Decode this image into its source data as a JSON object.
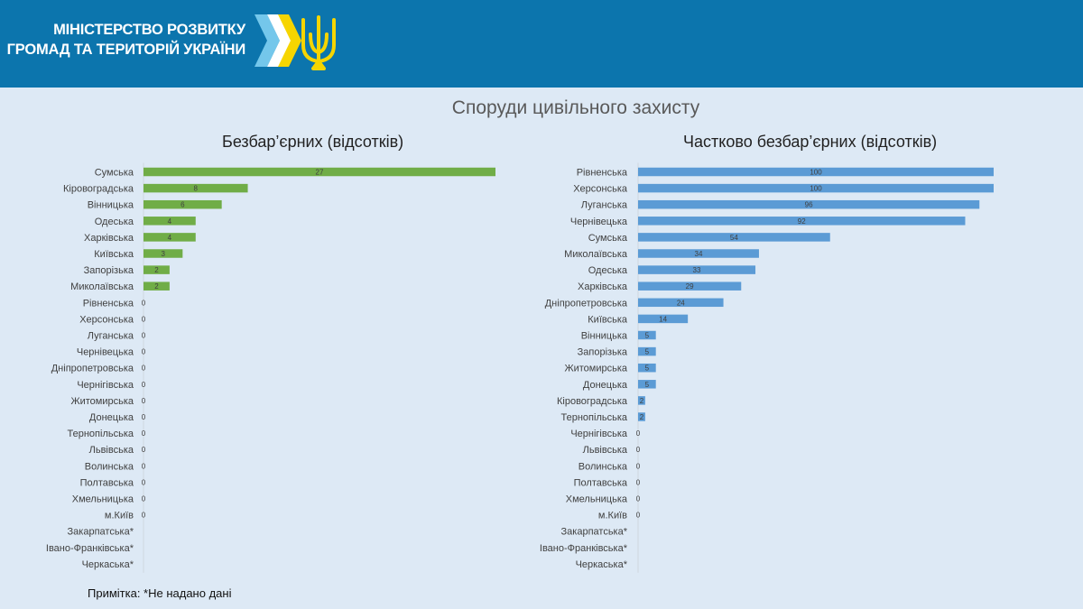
{
  "header": {
    "ministry_line1": "МІНІСТЕРСТВО РОЗВИТКУ",
    "ministry_line2": "ГРОМАД ТА ТЕРИТОРІЙ  УКРАЇНИ"
  },
  "colors": {
    "header_bg": "#0c75ad",
    "page_bg": "#dde9f5",
    "green_series": "#70ad47",
    "blue_series": "#5b9bd5"
  },
  "main_title": "Споруди цивільного захисту",
  "footnote": "Примітка: *Не надано дані",
  "chart_data": [
    {
      "type": "bar",
      "orientation": "horizontal",
      "title": "Безбар’єрних (відсотків)",
      "color": "#70ad47",
      "xlim": [
        0,
        27
      ],
      "categories": [
        "Сумська",
        "Кіровоградська",
        "Вінницька",
        "Одеська",
        "Харківська",
        "Київська",
        "Запорізька",
        "Миколаївська",
        "Рівненська",
        "Херсонська",
        "Луганська",
        "Чернівецька",
        "Дніпропетровська",
        "Чернігівська",
        "Житомирська",
        "Донецька",
        "Тернопільська",
        "Львівська",
        "Волинська",
        "Полтавська",
        "Хмельницька",
        "м.Київ",
        "Закарпатська*",
        "Івано-Франківська*",
        "Черкаська*"
      ],
      "values": [
        27,
        8,
        6,
        4,
        4,
        3,
        2,
        2,
        0,
        0,
        0,
        0,
        0,
        0,
        0,
        0,
        0,
        0,
        0,
        0,
        0,
        0,
        null,
        null,
        null
      ]
    },
    {
      "type": "bar",
      "orientation": "horizontal",
      "title": "Частково безбар’єрних (відсотків)",
      "color": "#5b9bd5",
      "xlim": [
        0,
        100
      ],
      "categories": [
        "Рівненська",
        "Херсонська",
        "Луганська",
        "Чернівецька",
        "Сумська",
        "Миколаївська",
        "Одеська",
        "Харківська",
        "Дніпропетровська",
        "Київська",
        "Вінницька",
        "Запорізька",
        "Житомирська",
        "Донецька",
        "Кіровоградська",
        "Тернопільська",
        "Чернігівська",
        "Львівська",
        "Волинська",
        "Полтавська",
        "Хмельницька",
        "м.Київ",
        "Закарпатська*",
        "Івано-Франківська*",
        "Черкаська*"
      ],
      "values": [
        100,
        100,
        96,
        92,
        54,
        34,
        33,
        29,
        24,
        14,
        5,
        5,
        5,
        5,
        2,
        2,
        0,
        0,
        0,
        0,
        0,
        0,
        null,
        null,
        null
      ]
    }
  ]
}
